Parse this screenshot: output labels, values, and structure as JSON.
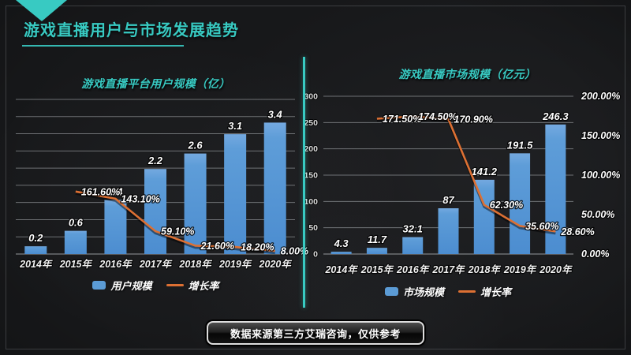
{
  "slide": {
    "title": "游戏直播用户与市场发展趋势"
  },
  "footer": {
    "note": "数据来源第三方艾瑞咨询，仅供参考"
  },
  "colors": {
    "accent_teal": "#38CAC2",
    "bar_blue": "#5B9BD5",
    "line_orange": "#DD7033",
    "background": "#17181A",
    "grid": "#A2A6AA",
    "label": "#FFFFFF"
  },
  "chart_data": [
    {
      "type": "bar+line",
      "title": "游戏直播平台用户规模（亿）",
      "categories": [
        "2014年",
        "2015年",
        "2016年",
        "2017年",
        "2018年",
        "2019年",
        "2020年"
      ],
      "series": [
        {
          "name": "用户规模",
          "type": "bar",
          "axis": "left",
          "values": [
            0.2,
            0.6,
            1.4,
            2.2,
            2.6,
            3.1,
            3.4
          ],
          "labels": [
            "0.2",
            "0.6",
            "1.4",
            "2.2",
            "2.6",
            "3.1",
            "3.4"
          ]
        },
        {
          "name": "增长率",
          "type": "line",
          "axis": "right",
          "values": [
            null,
            161.6,
            143.1,
            59.1,
            21.6,
            18.2,
            8.0
          ],
          "labels": [
            "",
            "161.60%",
            "143.10%",
            "59.10%",
            "21.60%",
            "18.20%",
            "8.00%"
          ]
        }
      ],
      "left_axis": {
        "min": 0,
        "max": 4,
        "grid_divisions": 9,
        "tick_labels": []
      },
      "right_axis": {
        "min": 0,
        "max": 400,
        "tick_labels": []
      },
      "legend": [
        "用户规模",
        "增长率"
      ],
      "legend_position": "bottom",
      "grid": true
    },
    {
      "type": "bar+line",
      "title": "游戏直播市场规模（亿元）",
      "categories": [
        "2014年",
        "2015年",
        "2016年",
        "2017年",
        "2018年",
        "2019年",
        "2020年"
      ],
      "series": [
        {
          "name": "市场规模",
          "type": "bar",
          "axis": "left",
          "values": [
            4.3,
            11.7,
            32.1,
            87,
            141.2,
            191.5,
            246.3
          ],
          "labels": [
            "4.3",
            "11.7",
            "32.1",
            "87",
            "141.2",
            "191.5",
            "246.3"
          ]
        },
        {
          "name": "增长率",
          "type": "line",
          "axis": "right",
          "values": [
            null,
            171.5,
            174.5,
            170.9,
            62.3,
            35.6,
            28.6
          ],
          "labels": [
            "",
            "171.50%",
            "174.50%",
            "170.90%",
            "62.30%",
            "35.60%",
            "28.60%"
          ]
        }
      ],
      "left_axis": {
        "min": 0,
        "max": 300,
        "grid_divisions": 6,
        "tick_labels": [
          "0",
          "50",
          "100",
          "150",
          "200",
          "250",
          "300"
        ]
      },
      "right_axis": {
        "min": 0,
        "max": 200,
        "tick_labels": [
          "0.00%",
          "50.00%",
          "100.00%",
          "150.00%",
          "200.00%"
        ]
      },
      "legend": [
        "市场规模",
        "增长率"
      ],
      "legend_position": "bottom",
      "grid": true
    }
  ]
}
